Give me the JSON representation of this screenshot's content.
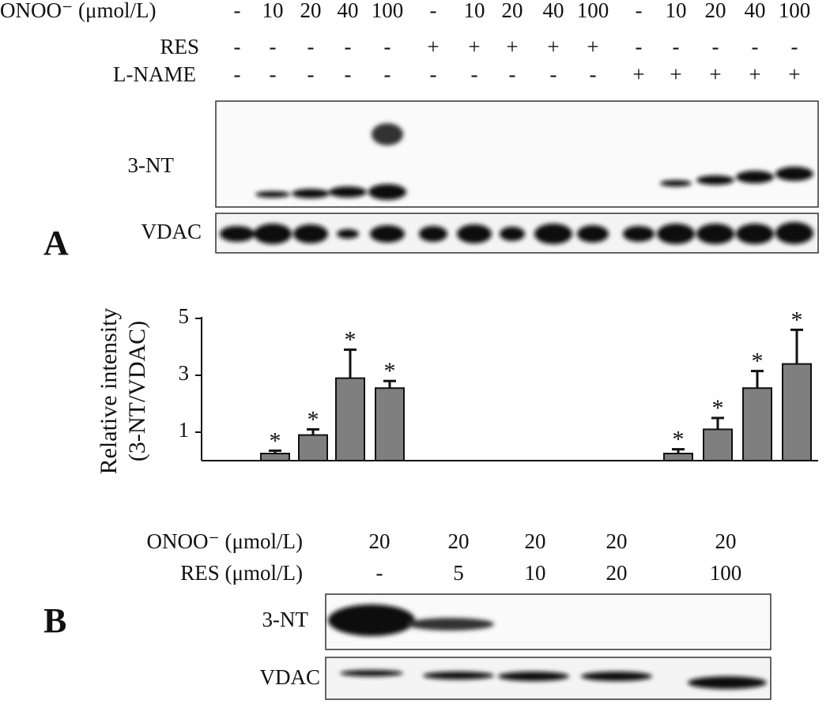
{
  "panel_a": {
    "label": "A",
    "rows": [
      {
        "label": "ONOO⁻ (μmol/L)",
        "lanes": [
          "-",
          "10",
          "20",
          "40",
          "100",
          "-",
          "10",
          "20",
          "40",
          "100",
          "-",
          "10",
          "20",
          "40",
          "100"
        ]
      },
      {
        "label": "RES",
        "lanes": [
          "-",
          "-",
          "-",
          "-",
          "-",
          "+",
          "+",
          "+",
          "+",
          "+",
          "-",
          "-",
          "-",
          "-",
          "-"
        ]
      },
      {
        "label": "L-NAME",
        "lanes": [
          "-",
          "-",
          "-",
          "-",
          "-",
          "-",
          "-",
          "-",
          "-",
          "-",
          "+",
          "+",
          "+",
          "+",
          "+"
        ]
      }
    ],
    "blots": [
      "3-NT",
      "VDAC"
    ]
  },
  "chart_data": {
    "type": "bar",
    "ylabel": [
      "Relative intensity",
      "(3-NT/VDAC)"
    ],
    "values": [
      null,
      0.25,
      0.9,
      2.9,
      2.55,
      null,
      null,
      null,
      null,
      null,
      null,
      0.25,
      1.1,
      2.55,
      3.4
    ],
    "errors": [
      null,
      0.1,
      0.2,
      1.0,
      0.25,
      null,
      null,
      null,
      null,
      null,
      null,
      0.15,
      0.4,
      0.6,
      1.2
    ],
    "marker": "*",
    "color": "#7f7f7f",
    "ylim": [
      0,
      5
    ],
    "yticks": [
      1,
      3,
      5
    ]
  },
  "panel_b": {
    "label": "B",
    "rows": [
      {
        "label": "ONOO⁻ (μmol/L)",
        "lanes": [
          "20",
          "20",
          "20",
          "20",
          "20"
        ]
      },
      {
        "label": "RES (μmol/L)",
        "lanes": [
          "-",
          "5",
          "10",
          "20",
          "100"
        ]
      }
    ],
    "blots": [
      "3-NT",
      "VDAC"
    ]
  }
}
